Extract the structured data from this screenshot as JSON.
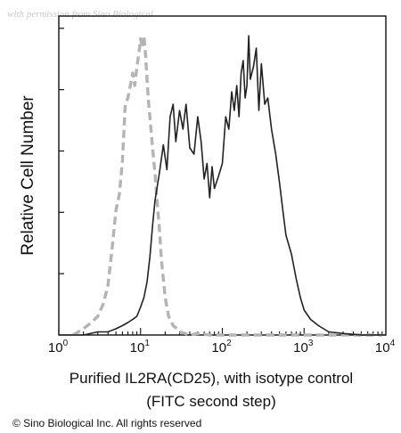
{
  "watermark": "with permission from Sino Biological",
  "copyright": "© Sino Biological Inc. All rights reserved",
  "chart_data": {
    "type": "line",
    "xscale": "log",
    "xlim": [
      1,
      10000
    ],
    "ylim": [
      0,
      100
    ],
    "xlabel_line1": "Purified  IL2RA(CD25), with isotype control",
    "xlabel_line2": "(FITC second step)",
    "ylabel": "Relative Cell Number",
    "xticks": [
      {
        "base": "10",
        "exp": "0",
        "value": 1
      },
      {
        "base": "10",
        "exp": "1",
        "value": 10
      },
      {
        "base": "10",
        "exp": "2",
        "value": 100
      },
      {
        "base": "10",
        "exp": "3",
        "value": 1000
      },
      {
        "base": "10",
        "exp": "4",
        "value": 10000
      }
    ],
    "series": [
      {
        "role": "isotype control",
        "color": "#b4b4b4",
        "style": "dashed",
        "x": [
          1.5,
          2,
          2.5,
          3,
          3.5,
          4,
          4.5,
          5,
          5.5,
          6,
          6.5,
          7,
          7.5,
          8,
          8.5,
          9,
          9.5,
          10,
          10.5,
          11,
          11.5,
          12,
          12.5,
          13,
          14,
          15,
          16,
          17,
          18,
          19,
          20,
          22,
          25,
          28,
          30,
          35,
          40,
          50,
          70,
          100,
          200,
          1000,
          9000
        ],
        "y": [
          0,
          2,
          4,
          6,
          10,
          16,
          28,
          40,
          45,
          56,
          74,
          76,
          80,
          84,
          80,
          86,
          90,
          95,
          92,
          96,
          90,
          82,
          75,
          70,
          60,
          52,
          42,
          34,
          24,
          18,
          12,
          6,
          3,
          2,
          1,
          0.5,
          0,
          0.5,
          0,
          0,
          0,
          0,
          0
        ]
      },
      {
        "role": "IL2RA(CD25)",
        "color": "#222222",
        "style": "solid",
        "x": [
          1,
          2,
          3,
          4,
          5,
          6,
          7,
          8,
          9,
          10,
          11,
          12,
          13,
          14,
          15,
          17,
          19,
          21,
          23,
          25,
          27,
          30,
          33,
          36,
          40,
          45,
          50,
          55,
          60,
          65,
          70,
          75,
          80,
          90,
          100,
          110,
          120,
          130,
          140,
          150,
          160,
          170,
          180,
          190,
          200,
          210,
          220,
          240,
          260,
          280,
          300,
          330,
          360,
          400,
          450,
          500,
          550,
          600,
          700,
          800,
          900,
          1000,
          1200,
          1500,
          2000,
          3000,
          5000,
          10000
        ],
        "y": [
          0,
          0,
          1,
          1,
          2,
          3,
          4,
          5,
          6,
          9,
          12,
          17,
          25,
          35,
          43,
          52,
          61,
          53,
          70,
          74,
          62,
          72,
          66,
          74,
          60,
          58,
          70,
          62,
          50,
          55,
          44,
          54,
          47,
          51,
          55,
          70,
          66,
          78,
          72,
          80,
          70,
          84,
          88,
          76,
          80,
          96,
          82,
          86,
          92,
          72,
          87,
          74,
          76,
          66,
          58,
          49,
          40,
          32,
          26,
          18,
          12,
          8,
          5,
          3,
          1,
          0.5,
          0,
          0
        ]
      }
    ]
  }
}
